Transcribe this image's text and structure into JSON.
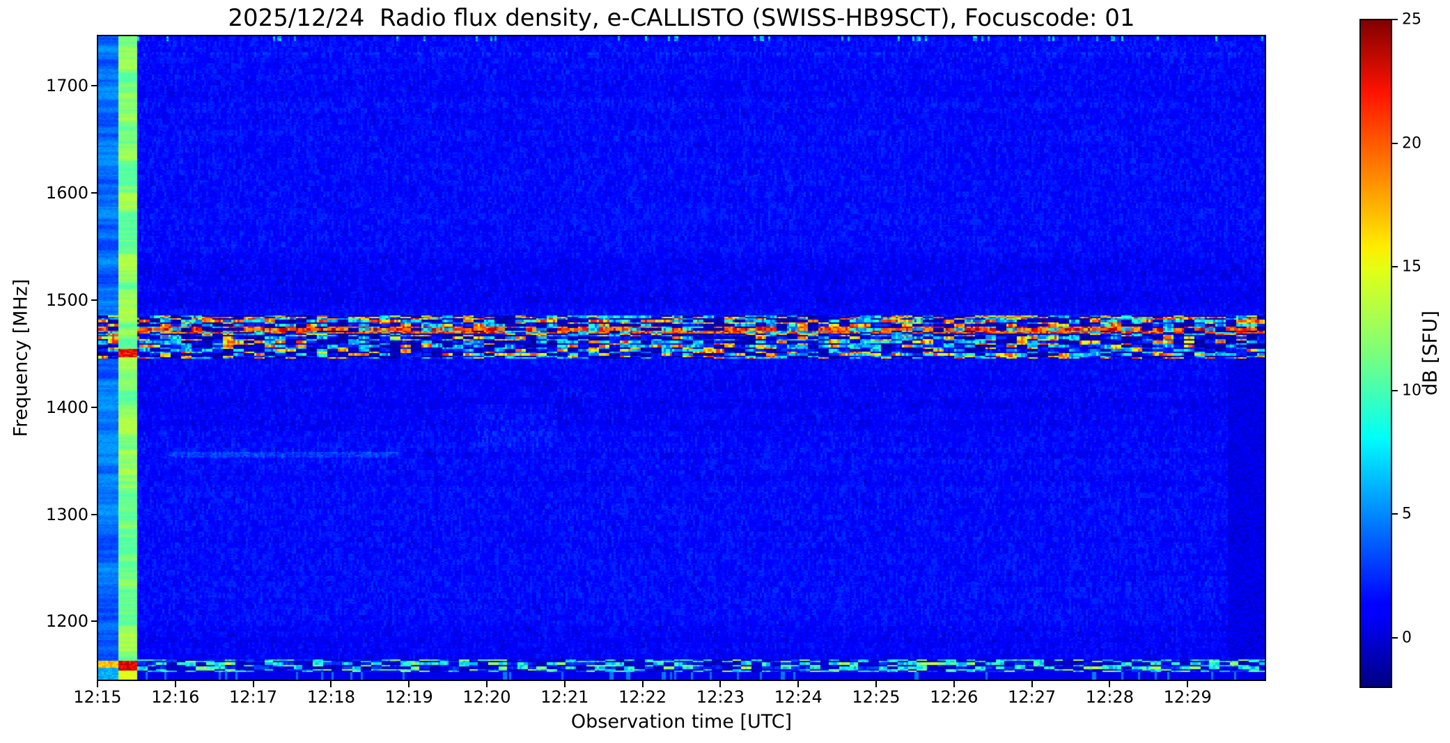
{
  "chart_data": {
    "type": "heatmap",
    "title": "2025/12/24  Radio flux density, e-CALLISTO (SWISS-HB9SCT), Focuscode: 01",
    "xlabel": "Observation time [UTC]",
    "ylabel": "Frequency [MHz]",
    "x_ticks": [
      "12:15",
      "12:16",
      "12:17",
      "12:18",
      "12:19",
      "12:20",
      "12:21",
      "12:22",
      "12:23",
      "12:24",
      "12:25",
      "12:26",
      "12:27",
      "12:28",
      "12:29"
    ],
    "y_ticks": [
      "1700",
      "1600",
      "1500",
      "1400",
      "1300",
      "1200"
    ],
    "x_range_utc": [
      "12:15",
      "12:30"
    ],
    "y_range_mhz": [
      1145,
      1747
    ],
    "grid": false,
    "colorbar": {
      "label": "dB [SFU]",
      "ticks": [
        "25",
        "20",
        "15",
        "10",
        "5",
        "0"
      ],
      "vmin": -2,
      "vmax": 25,
      "colormap": "jet"
    },
    "features": [
      {
        "name": "background-noise-field",
        "approx_db": "0 to 2.5",
        "color": "#0010e0"
      },
      {
        "name": "startup-column",
        "time_utc": "12:15:00-12:15:15",
        "freq_mhz": [
          1145,
          1747
        ],
        "approx_db": "3 to 6",
        "color": "#2a60d8"
      },
      {
        "name": "calibration-stripe",
        "time_utc": "12:15:15-12:15:30",
        "freq_mhz": [
          1145,
          1747
        ],
        "approx_db": "9 to 16",
        "color": "#52e09e"
      },
      {
        "name": "rfi-band",
        "time_utc": "12:15-12:30",
        "freq_mhz": [
          1446,
          1487
        ],
        "peak_line_mhz": 1474,
        "approx_db": "-2 to 24",
        "color": "#ff9700"
      },
      {
        "name": "low-freq-rfi-band",
        "time_utc": "12:15-12:30",
        "freq_mhz": [
          1152,
          1163
        ],
        "approx_db": "5 to 14",
        "color": "#00d8ff"
      },
      {
        "name": "attenuated-block",
        "time_utc": "12:29:30-12:30:00",
        "freq_mhz": [
          1165,
          1446
        ],
        "approx_db": "-2 to 1",
        "color": "#0000a8"
      },
      {
        "name": "faint-horizontal-traces",
        "freq_mhz": [
          1357,
          1312
        ],
        "approx_db": "subtle"
      }
    ],
    "colors": {
      "colorbar_top": "#800000",
      "colorbar_bottom": "#000080",
      "axes_text": "#000000",
      "figure_background": "#ffffff"
    }
  }
}
